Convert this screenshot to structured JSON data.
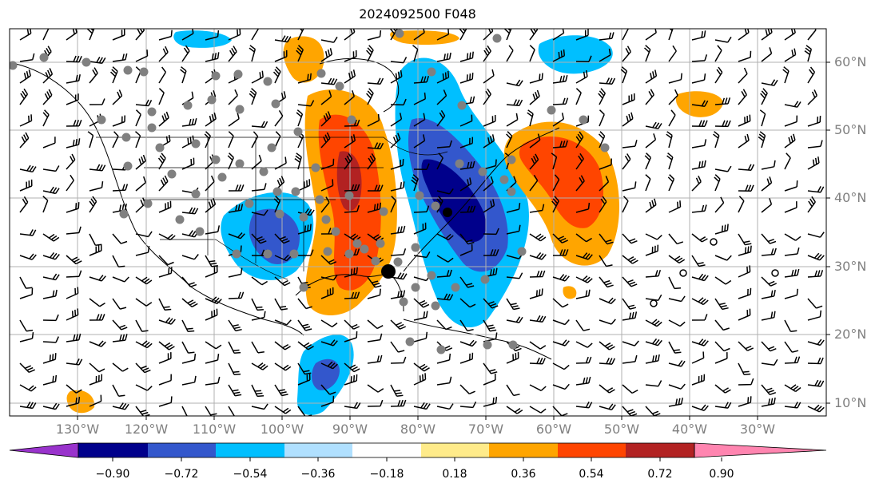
{
  "title": "2024092500 F048",
  "lat_labels": [
    "60°N",
    "50°N",
    "40°N",
    "30°N",
    "20°N",
    "10°N"
  ],
  "lon_labels": [
    "130°W",
    "120°W",
    "110°W",
    "100°W",
    "90°W",
    "80°W",
    "70°W",
    "60°W",
    "50°W",
    "40°W",
    "30°W"
  ],
  "colorbar": {
    "colors": [
      "#9933cc",
      "#00008b",
      "#3357cc",
      "#00bfff",
      "#b0e0ff",
      "#ffffff",
      "#ffeb8a",
      "#ffa500",
      "#ff4500",
      "#b22222",
      "#ff85b0"
    ],
    "tick_labels": [
      "−0.90",
      "−0.72",
      "−0.54",
      "−0.36",
      "−0.18",
      "0.18",
      "0.36",
      "0.54",
      "0.72",
      "0.90"
    ]
  },
  "palette": {
    "gridline": "#b0b0b0",
    "marker": "#808080",
    "barb": "#000000"
  }
}
